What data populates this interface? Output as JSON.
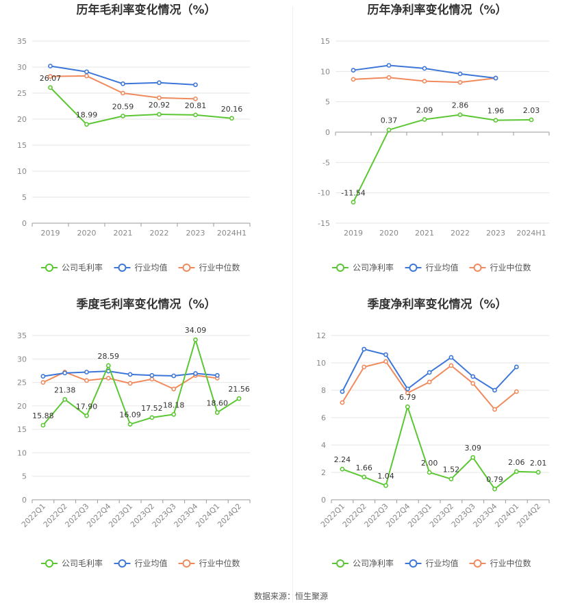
{
  "colors": {
    "company": "#5ac732",
    "industry_avg": "#3b76d8",
    "industry_median": "#f08a5c",
    "grid": "#e6e6e6",
    "axis": "#999999"
  },
  "source": "数据来源：恒生聚源",
  "chart_data": [
    {
      "type": "line",
      "title": "历年毛利率变化情况（%）",
      "categories": [
        "2019",
        "2020",
        "2021",
        "2022",
        "2023",
        "2024H1"
      ],
      "ylim": [
        0,
        35
      ],
      "yticks": [
        0,
        5,
        10,
        15,
        20,
        25,
        30,
        35
      ],
      "grid": true,
      "legend": "bottom",
      "series": [
        {
          "name": "公司毛利率",
          "key": "company",
          "values": [
            26.07,
            18.99,
            20.59,
            20.92,
            20.81,
            20.16
          ],
          "labels": [
            "26.07",
            "18.99",
            "20.59",
            "20.92",
            "20.81",
            "20.16"
          ]
        },
        {
          "name": "行业均值",
          "key": "industry_avg",
          "values": [
            30.2,
            29.1,
            26.8,
            27.0,
            26.6,
            null
          ]
        },
        {
          "name": "行业中位数",
          "key": "industry_median",
          "values": [
            28.2,
            28.3,
            25.0,
            24.1,
            23.9,
            null
          ]
        }
      ]
    },
    {
      "type": "line",
      "title": "历年净利率变化情况（%）",
      "categories": [
        "2019",
        "2020",
        "2021",
        "2022",
        "2023",
        "2024H1"
      ],
      "ylim": [
        -15,
        15
      ],
      "yticks": [
        -15,
        -10,
        -5,
        0,
        5,
        10,
        15
      ],
      "grid": true,
      "legend": "bottom",
      "series": [
        {
          "name": "公司净利率",
          "key": "company",
          "values": [
            -11.54,
            0.37,
            2.09,
            2.86,
            1.96,
            2.03
          ],
          "labels": [
            "-11.54",
            "0.37",
            "2.09",
            "2.86",
            "1.96",
            "2.03"
          ]
        },
        {
          "name": "行业均值",
          "key": "industry_avg",
          "values": [
            10.2,
            11.0,
            10.5,
            9.6,
            8.9,
            null
          ]
        },
        {
          "name": "行业中位数",
          "key": "industry_median",
          "values": [
            8.7,
            9.0,
            8.4,
            8.2,
            8.9,
            null
          ]
        }
      ]
    },
    {
      "type": "line",
      "title": "季度毛利率变化情况（%）",
      "categories": [
        "2022Q1",
        "2022Q2",
        "2022Q3",
        "2022Q4",
        "2023Q1",
        "2023Q2",
        "2023Q3",
        "2023Q4",
        "2024Q1",
        "2024Q2"
      ],
      "ylim": [
        0,
        35
      ],
      "yticks": [
        0,
        5,
        10,
        15,
        20,
        25,
        30,
        35
      ],
      "grid": true,
      "legend": "bottom",
      "series": [
        {
          "name": "公司毛利率",
          "key": "company",
          "values": [
            15.88,
            21.38,
            17.9,
            28.59,
            16.09,
            17.52,
            18.18,
            34.09,
            18.6,
            21.56
          ],
          "labels": [
            "15.88",
            "21.38",
            "17.90",
            "28.59",
            "16.09",
            "17.52",
            "18.18",
            "34.09",
            "18.60",
            "21.56"
          ]
        },
        {
          "name": "行业均值",
          "key": "industry_avg",
          "values": [
            26.3,
            27.0,
            27.2,
            27.4,
            26.7,
            26.5,
            26.4,
            26.9,
            26.5,
            null
          ]
        },
        {
          "name": "行业中位数",
          "key": "industry_median",
          "values": [
            25.0,
            27.2,
            25.4,
            25.9,
            24.8,
            25.7,
            23.6,
            26.5,
            25.9,
            null
          ]
        }
      ]
    },
    {
      "type": "line",
      "title": "季度净利率变化情况（%）",
      "categories": [
        "2022Q1",
        "2022Q2",
        "2022Q3",
        "2022Q4",
        "2023Q1",
        "2023Q2",
        "2023Q3",
        "2023Q4",
        "2024Q1",
        "2024Q2"
      ],
      "ylim": [
        0,
        12
      ],
      "yticks": [
        0,
        2,
        4,
        6,
        8,
        10,
        12
      ],
      "grid": true,
      "legend": "bottom",
      "series": [
        {
          "name": "公司净利率",
          "key": "company",
          "values": [
            2.24,
            1.66,
            1.04,
            6.79,
            2.0,
            1.52,
            3.09,
            0.79,
            2.06,
            2.01
          ],
          "labels": [
            "2.24",
            "1.66",
            "1.04",
            "6.79",
            "2.00",
            "1.52",
            "3.09",
            "0.79",
            "2.06",
            "2.01"
          ]
        },
        {
          "name": "行业均值",
          "key": "industry_avg",
          "values": [
            7.9,
            11.0,
            10.6,
            8.1,
            9.3,
            10.4,
            9.0,
            8.0,
            9.7,
            null
          ]
        },
        {
          "name": "行业中位数",
          "key": "industry_median",
          "values": [
            7.1,
            9.7,
            10.1,
            7.8,
            8.6,
            9.8,
            8.5,
            6.6,
            7.9,
            null
          ]
        }
      ]
    }
  ]
}
